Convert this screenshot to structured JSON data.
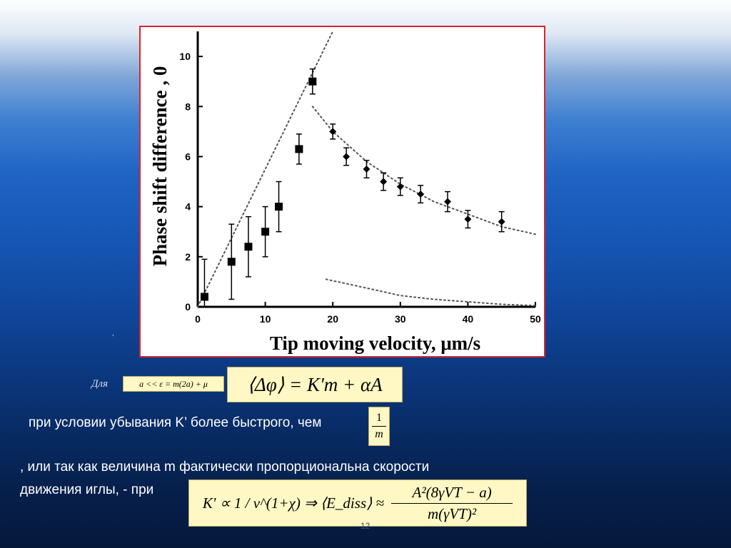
{
  "chart_data": {
    "type": "scatter",
    "xlabel": "Tip moving velocity, μm/s",
    "ylabel": "Phase shift difference , 0",
    "xlim": [
      0,
      50
    ],
    "ylim": [
      0,
      11
    ],
    "xticks": [
      0,
      10,
      20,
      30,
      40,
      50
    ],
    "yticks": [
      0,
      2,
      4,
      6,
      8,
      10
    ],
    "series": [
      {
        "marker": "square",
        "color": "#000000",
        "x": [
          1,
          5,
          7.5,
          10,
          12,
          15,
          17
        ],
        "y": [
          0.4,
          1.8,
          2.4,
          3.0,
          4.0,
          6.3,
          9.0
        ],
        "err": [
          1.5,
          1.5,
          1.2,
          1.0,
          1.0,
          0.6,
          0.5
        ]
      },
      {
        "marker": "diamond",
        "color": "#000000",
        "x": [
          20,
          22,
          25,
          27.5,
          30,
          33,
          37,
          40,
          45
        ],
        "y": [
          7.0,
          6.0,
          5.5,
          5.0,
          4.8,
          4.5,
          4.2,
          3.5,
          3.4
        ],
        "err": [
          0.3,
          0.35,
          0.35,
          0.35,
          0.35,
          0.35,
          0.4,
          0.35,
          0.4
        ]
      }
    ],
    "fits": [
      {
        "style": "dotted",
        "x": [
          0,
          20
        ],
        "y": [
          0,
          11
        ]
      },
      {
        "style": "dotted",
        "x": [
          17,
          20,
          25,
          30,
          35,
          40,
          45,
          50
        ],
        "y": [
          8.0,
          7.0,
          5.8,
          4.9,
          4.2,
          3.7,
          3.2,
          2.9
        ]
      },
      {
        "style": "dotted",
        "x": [
          19,
          25,
          30,
          35,
          40,
          45,
          50
        ],
        "y": [
          1.1,
          0.75,
          0.45,
          0.3,
          0.2,
          0.1,
          0.05
        ]
      }
    ],
    "grid": false
  },
  "text": {
    "mark": ",",
    "dla": "Для",
    "formula_condition": "a << ε = m(2a) + μ",
    "formula_main": "⟨Δφ⟩ = K'm + αA",
    "line1": "при условии убывания K’ более быстрого, чем",
    "frac_num": "1",
    "frac_den": "m",
    "line2": ", или так как величина m фактически пропорциональна скорости",
    "line3": "движения иглы, - при",
    "formula_bottom_left": "K' ∝ 1 / v^(1+χ) ⇒ ⟨E_diss⟩ ≈",
    "formula_bottom_num": "A²(8γVT − a)",
    "formula_bottom_den": "m(γVT)²",
    "page_number": "12"
  }
}
